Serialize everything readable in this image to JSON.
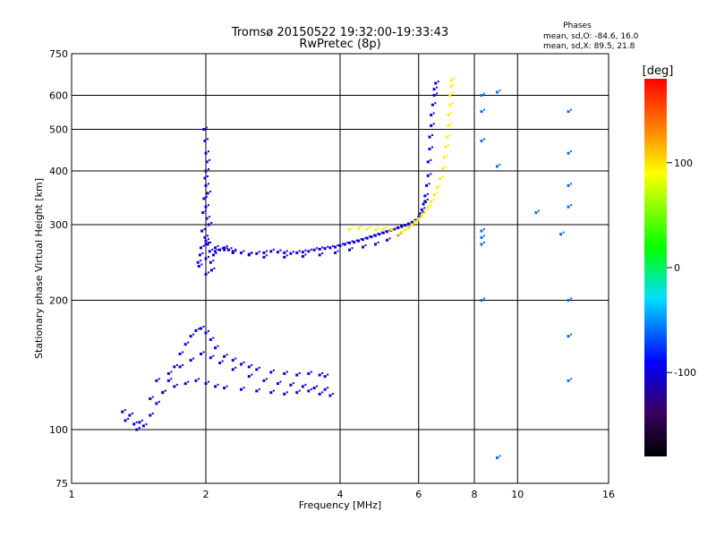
{
  "chart_data": {
    "type": "scatter",
    "title": "Tromsø 20150522 19:32:00-19:33:43",
    "subtitle": "RwPretec (8p)",
    "xlabel": "Frequency [MHz]",
    "ylabel": "Stationary phase Virtual Height [km]",
    "x_scale": "log",
    "y_scale": "log",
    "xlim": [
      1,
      16
    ],
    "ylim": [
      75,
      750
    ],
    "x_ticks": [
      1,
      2,
      4,
      6,
      8,
      10,
      16
    ],
    "y_ticks": [
      75,
      100,
      200,
      300,
      400,
      500,
      600,
      750
    ],
    "grid": true,
    "phase_stats": {
      "title": "Phases",
      "line_o": "mean, sd,O: -84.6, 16.0",
      "line_x": "mean, sd,X:  89.5, 21.8"
    },
    "colorbar": {
      "label": "[deg]",
      "range": [
        -180,
        180
      ],
      "ticks": [
        100,
        0,
        -100
      ],
      "colors": [
        "#000000",
        "#3c0064",
        "#0000ff",
        "#00e0ff",
        "#00ff00",
        "#ffff00",
        "#ff8000",
        "#ff0000"
      ]
    },
    "series": [
      {
        "name": "",
        "phase": -100,
        "x": [
          1.98,
          1.99,
          2.0,
          2.01,
          2.0,
          1.99,
          2.0,
          2.02,
          1.98,
          2.0,
          1.97,
          2.01,
          2.03,
          1.96,
          1.99,
          2.0,
          2.02,
          1.95,
          2.04,
          1.94,
          2.0,
          2.05,
          1.93,
          2.06,
          2.0,
          1.92,
          2.08,
          2.1,
          2.15,
          2.2,
          2.25,
          2.3,
          2.4,
          2.5,
          2.6,
          2.7,
          2.8,
          2.9,
          3.0,
          3.1,
          3.2,
          3.3,
          3.4,
          3.5,
          3.6,
          3.7,
          3.8,
          3.9,
          4.0,
          4.1,
          4.2,
          4.3,
          4.4,
          4.5,
          4.6,
          4.7,
          4.8,
          4.9,
          5.0,
          5.1,
          5.2,
          5.3,
          5.4,
          5.5,
          5.6,
          5.7,
          5.8,
          5.9,
          6.0,
          6.05,
          6.1,
          6.15,
          6.2,
          6.25,
          6.3,
          6.3,
          6.35,
          6.35,
          6.4,
          6.4,
          6.45,
          6.5,
          6.5,
          6.55
        ],
        "y": [
          500,
          470,
          440,
          420,
          400,
          385,
          370,
          355,
          345,
          330,
          320,
          310,
          300,
          290,
          280,
          275,
          270,
          265,
          260,
          255,
          250,
          245,
          240,
          235,
          230,
          245,
          255,
          260,
          262,
          265,
          262,
          260,
          258,
          256,
          257,
          258,
          260,
          259,
          258,
          257,
          258,
          259,
          260,
          262,
          263,
          264,
          265,
          266,
          268,
          270,
          272,
          273,
          275,
          277,
          279,
          281,
          283,
          285,
          287,
          289,
          291,
          293,
          295,
          297,
          299,
          301,
          304,
          307,
          312,
          318,
          325,
          335,
          350,
          370,
          390,
          420,
          450,
          480,
          510,
          540,
          570,
          600,
          620,
          640
        ]
      },
      {
        "name": "",
        "phase": -110,
        "x": [
          2.0,
          2.1,
          2.2,
          2.3,
          2.5,
          2.7,
          3.0,
          3.3,
          3.6,
          3.9,
          4.2,
          4.5,
          4.8,
          5.1,
          5.4,
          5.7,
          6.0,
          6.2
        ],
        "y": [
          270,
          265,
          262,
          258,
          255,
          252,
          252,
          253,
          255,
          258,
          262,
          266,
          270,
          276,
          284,
          296,
          312,
          340
        ]
      },
      {
        "name": "",
        "phase": 95,
        "x": [
          5.4,
          5.5,
          5.6,
          5.7,
          5.8,
          5.9,
          6.0,
          6.1,
          6.2,
          6.3,
          6.4,
          6.5,
          6.6,
          6.7,
          6.8,
          6.85,
          6.9,
          6.95,
          7.0,
          7.0,
          7.05,
          7.05,
          7.1,
          7.1,
          4.2,
          4.4,
          4.6,
          4.8,
          5.0,
          5.2
        ],
        "y": [
          285,
          288,
          292,
          296,
          300,
          305,
          310,
          316,
          322,
          330,
          340,
          352,
          366,
          384,
          405,
          430,
          455,
          480,
          510,
          540,
          570,
          600,
          630,
          650,
          292,
          294,
          293,
          292,
          293,
          292
        ]
      },
      {
        "name": "",
        "phase": -95,
        "x": [
          1.3,
          1.32,
          1.35,
          1.38,
          1.4,
          1.42,
          1.45,
          1.5,
          1.55,
          1.6,
          1.65,
          1.7,
          1.75,
          1.8,
          1.85,
          1.9,
          1.95,
          2.0,
          2.05,
          2.1,
          2.2,
          2.3,
          2.4,
          2.5,
          2.6,
          2.8,
          3.0,
          3.2,
          3.4,
          3.6,
          3.7
        ],
        "y": [
          110,
          105,
          108,
          103,
          100,
          104,
          102,
          108,
          115,
          122,
          130,
          140,
          150,
          158,
          165,
          170,
          172,
          168,
          162,
          155,
          148,
          145,
          142,
          140,
          138,
          136,
          135,
          134,
          135,
          134,
          133
        ]
      },
      {
        "name": "",
        "phase": -105,
        "x": [
          1.5,
          1.6,
          1.7,
          1.8,
          1.9,
          2.0,
          2.1,
          2.2,
          2.4,
          2.6,
          2.8,
          3.0,
          3.2,
          3.4,
          3.6,
          3.8,
          1.55,
          1.65,
          1.75,
          1.85,
          1.95,
          2.05,
          2.15,
          2.3,
          2.5,
          2.7,
          2.9,
          3.1,
          3.3,
          3.5,
          3.7
        ],
        "y": [
          118,
          122,
          126,
          128,
          130,
          128,
          126,
          125,
          124,
          123,
          122,
          121,
          122,
          123,
          121,
          120,
          130,
          135,
          140,
          145,
          150,
          147,
          143,
          138,
          133,
          130,
          128,
          127,
          126,
          125,
          124
        ]
      },
      {
        "name": "",
        "phase": -60,
        "x": [
          8.3,
          8.3,
          8.3,
          8.3,
          8.3,
          8.3,
          8.3,
          9.0,
          9.0,
          9.0,
          13.0,
          13.0,
          13.0,
          13.0,
          13.0,
          13.0,
          13.0,
          11.0,
          12.5,
          9.0
        ],
        "y": [
          600,
          550,
          470,
          290,
          280,
          270,
          200,
          610,
          410,
          86,
          550,
          440,
          370,
          330,
          200,
          165,
          130,
          320,
          285,
          86
        ]
      }
    ]
  }
}
